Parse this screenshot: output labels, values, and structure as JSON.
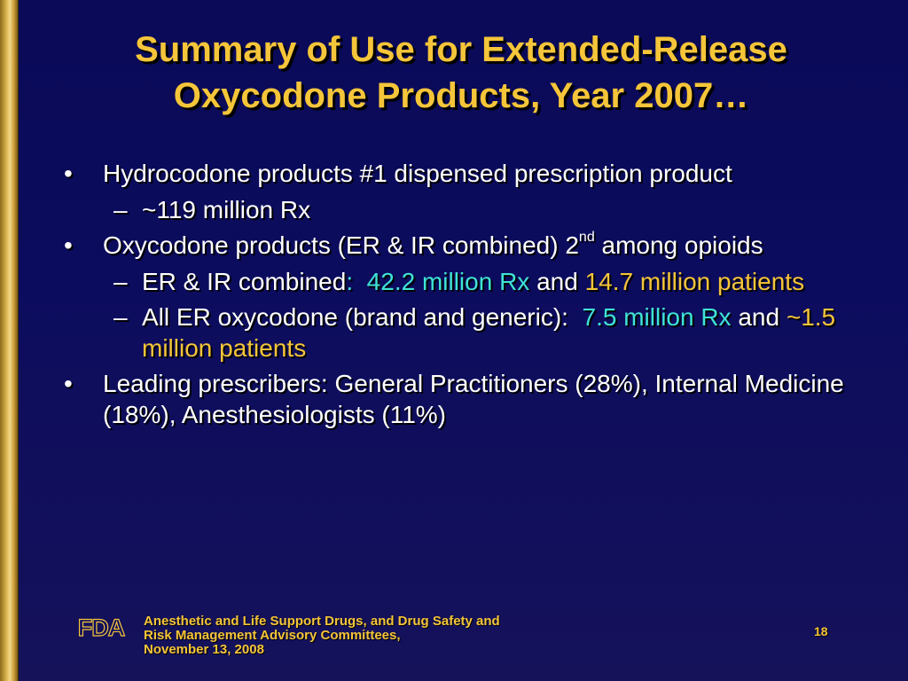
{
  "title": {
    "line1": "Summary of Use for Extended-Release",
    "line2": "Oxycodone Products, Year 2007…"
  },
  "bullets": {
    "b1": {
      "marker": "•",
      "text": "Hydrocodone products #1 dispensed prescription product",
      "sub1": {
        "marker": "–",
        "text": "~119 million Rx"
      }
    },
    "b2": {
      "marker": "•",
      "text_a": "Oxycodone products (ER & IR combined) 2",
      "sup": "nd",
      "text_b": " among opioids",
      "sub1": {
        "marker": "–",
        "label": "ER & IR combined",
        "colon": ":",
        "rx": "42.2 million Rx",
        "and": "and",
        "patients": "14.7 million patients"
      },
      "sub2": {
        "marker": "–",
        "label": "All ER oxycodone (brand and generic):",
        "rx": "7.5 million Rx",
        "and": "and",
        "patients": "~1.5 million patients"
      }
    },
    "b3": {
      "marker": "•",
      "text": "Leading prescribers: General Practitioners (28%), Internal Medicine (18%), Anesthesiologists (11%)"
    }
  },
  "footer": {
    "logo_text": "FDA",
    "line1": "Anesthetic and Life Support Drugs, and Drug Safety and",
    "line2": "Risk Management Advisory Committees,",
    "line3": "November 13, 2008",
    "page_number": "18"
  },
  "colors": {
    "background": "#0c0c5e",
    "title": "#f5c53a",
    "highlight_cyan": "#3fe3d6",
    "highlight_gold": "#f5c53a",
    "sidebar_gold": "#d8b24a"
  }
}
